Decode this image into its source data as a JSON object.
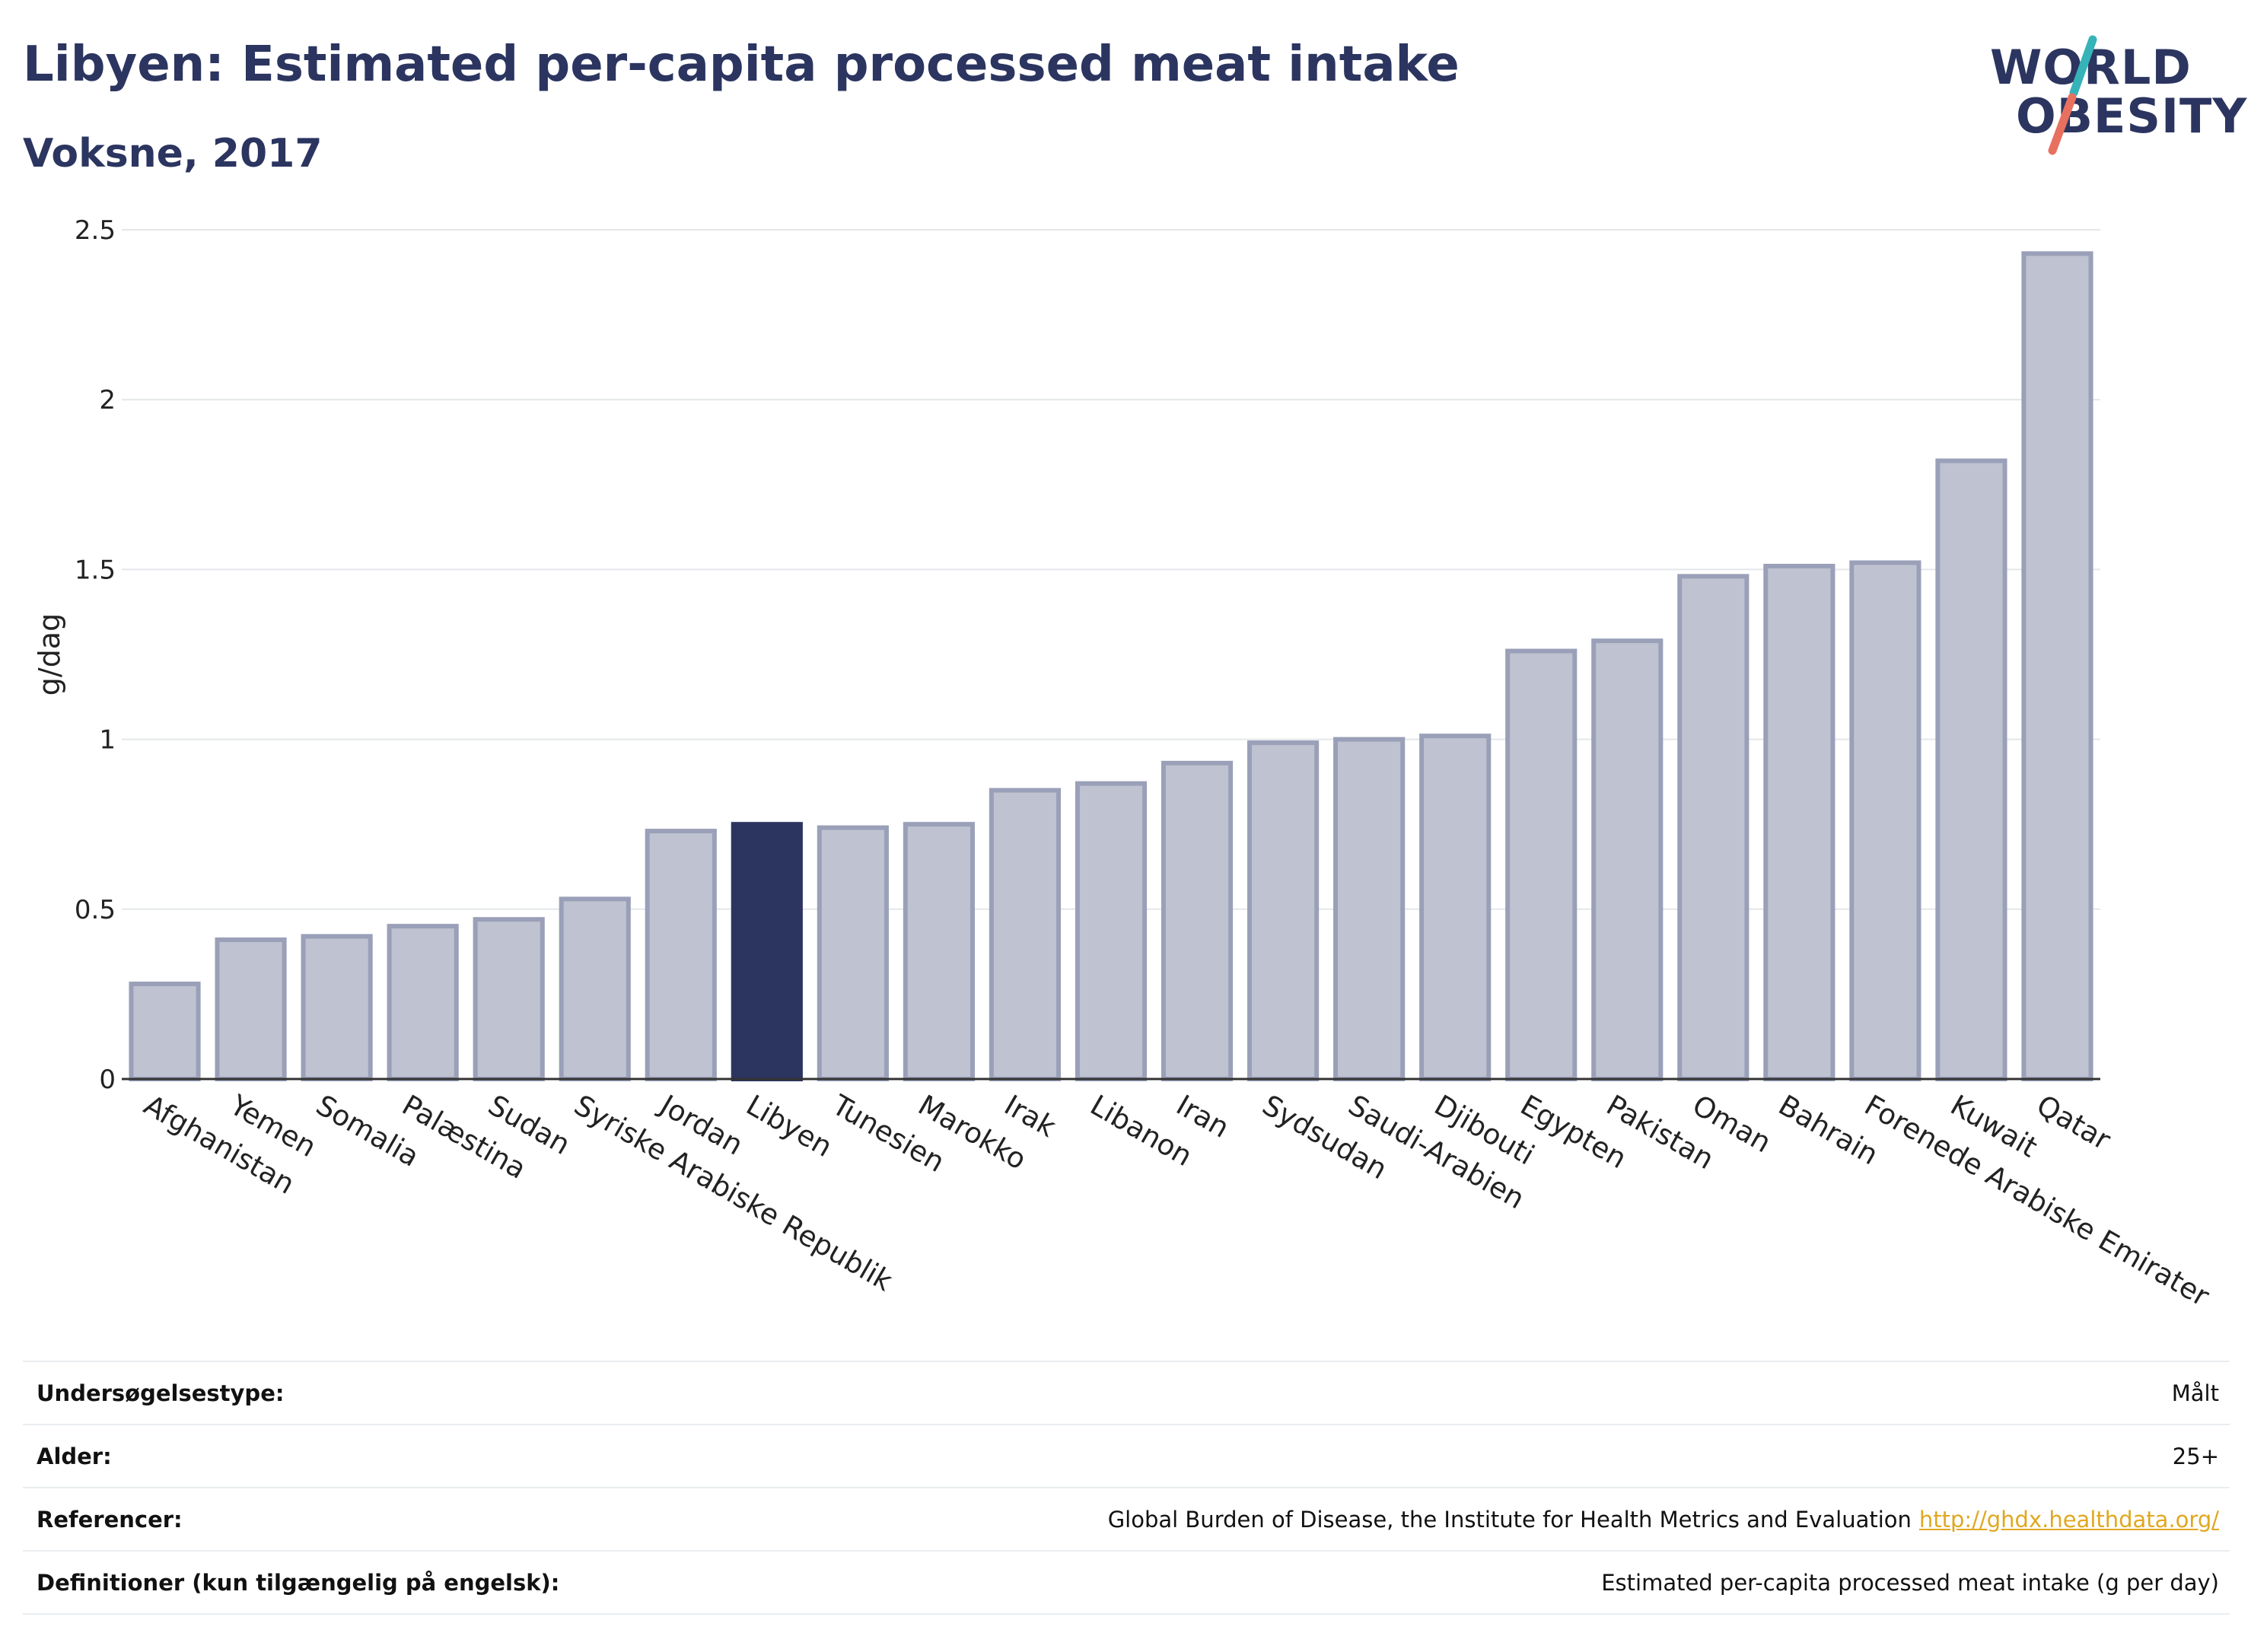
{
  "header": {
    "title": "Libyen: Estimated per-capita processed meat intake",
    "subtitle": "Voksne, 2017"
  },
  "logo": {
    "line1": "WORLD",
    "line2": "OBESITY",
    "accent_teal": "#36b3b8",
    "accent_coral": "#e8705f"
  },
  "colors": {
    "bar": "#bfc2d0",
    "bar_border": "#9aa0b8",
    "highlight": "#2b3560",
    "grid": "#e4e7ea",
    "axis_line": "#333333"
  },
  "chart_data": {
    "type": "bar",
    "title": "Libyen: Estimated per-capita processed meat intake",
    "subtitle": "Voksne, 2017",
    "xlabel": "",
    "ylabel": "g/dag",
    "ylim": [
      0,
      2.5
    ],
    "yticks": [
      0,
      0.5,
      1,
      1.5,
      2,
      2.5
    ],
    "ytick_labels": [
      "0",
      "0.5",
      "1",
      "1.5",
      "2",
      "2.5"
    ],
    "grid": true,
    "highlight": "Libyen",
    "categories": [
      "Afghanistan",
      "Yemen",
      "Somalia",
      "Palæstina",
      "Sudan",
      "Syriske Arabiske Republik",
      "Jordan",
      "Libyen",
      "Tunesien",
      "Marokko",
      "Irak",
      "Libanon",
      "Iran",
      "Sydsudan",
      "Saudi-Arabien",
      "Djibouti",
      "Egypten",
      "Pakistan",
      "Oman",
      "Bahrain",
      "Forenede Arabiske Emirater",
      "Kuwait",
      "Qatar"
    ],
    "values": [
      0.28,
      0.41,
      0.42,
      0.45,
      0.47,
      0.53,
      0.73,
      0.75,
      0.74,
      0.75,
      0.85,
      0.87,
      0.93,
      0.99,
      1.0,
      1.01,
      1.26,
      1.29,
      1.48,
      1.51,
      1.52,
      1.82,
      2.43
    ]
  },
  "meta": [
    {
      "key": "Undersøgelsestype:",
      "value": "Målt",
      "link": ""
    },
    {
      "key": "Alder:",
      "value": "25+",
      "link": ""
    },
    {
      "key": "Referencer:",
      "value": "Global Burden of Disease, the Institute for Health Metrics and Evaluation",
      "link": "http://ghdx.healthdata.org/"
    },
    {
      "key": "Definitioner (kun tilgængelig på engelsk):",
      "value": "Estimated per-capita processed meat intake (g per day)",
      "link": ""
    }
  ]
}
